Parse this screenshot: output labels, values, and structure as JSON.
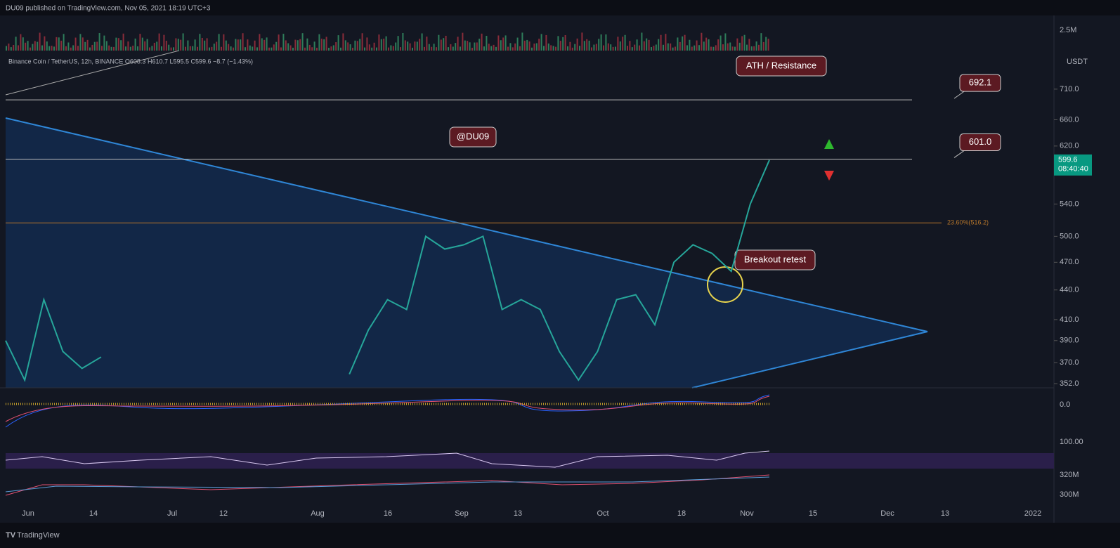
{
  "header": "DU09 published on TradingView.com, Nov 05, 2021 18:19 UTC+3",
  "legend": "Binance Coin / TetherUS, 12h, BINANCE O608.3 H610.7 L595.5 C599.6 −8.7 (−1.43%)",
  "footer": "TradingView",
  "annotations": {
    "ath": "ATH / Resistance",
    "author": "@DU09",
    "retest": "Breakout retest",
    "fib": "23.60%(516.2)"
  },
  "panes": {
    "volume": "2.5M",
    "currency": "USDT",
    "macd": "0.0",
    "rsi": "100.00",
    "obv_top": "320M",
    "obv_bottom": "300M"
  },
  "x_labels": [
    "Jun",
    "14",
    "Jul",
    "12",
    "Aug",
    "16",
    "Sep",
    "13",
    "Oct",
    "18",
    "Nov",
    "15",
    "Dec",
    "13",
    "2022"
  ],
  "chart_data": {
    "type": "line",
    "log_scale": true,
    "color": "#26a69a",
    "ylim": [
      348.5,
      842
    ],
    "yticks": [
      {
        "value": 352,
        "label": "352.0"
      },
      {
        "value": 370,
        "label": "370.0"
      },
      {
        "value": 390,
        "label": "390.0"
      },
      {
        "value": 410,
        "label": "410.0"
      },
      {
        "value": 440,
        "label": "440.0"
      },
      {
        "value": 470,
        "label": "470.0"
      },
      {
        "value": 500,
        "label": "500.0"
      },
      {
        "value": 540,
        "label": "540.0"
      },
      {
        "value": 620,
        "label": "620.0"
      },
      {
        "value": 660,
        "label": "660.0"
      },
      {
        "value": 710,
        "label": "710.0"
      }
    ],
    "levels": [
      {
        "value": 692.1,
        "label": "692.1"
      },
      {
        "value": 601,
        "label": "601.0"
      }
    ],
    "fib_level": 516.2,
    "last": {
      "value": 599.6,
      "label": "599.6",
      "countdown": "08:40:40"
    },
    "values": [
      390,
      355,
      430,
      380,
      365,
      375,
      null,
      null,
      null,
      null,
      null,
      null,
      null,
      null,
      null,
      null,
      null,
      null,
      360,
      400,
      430,
      420,
      500,
      485,
      490,
      500,
      420,
      430,
      420,
      380,
      355,
      380,
      430,
      435,
      405,
      470,
      490,
      480,
      460,
      540,
      599.6
    ]
  }
}
